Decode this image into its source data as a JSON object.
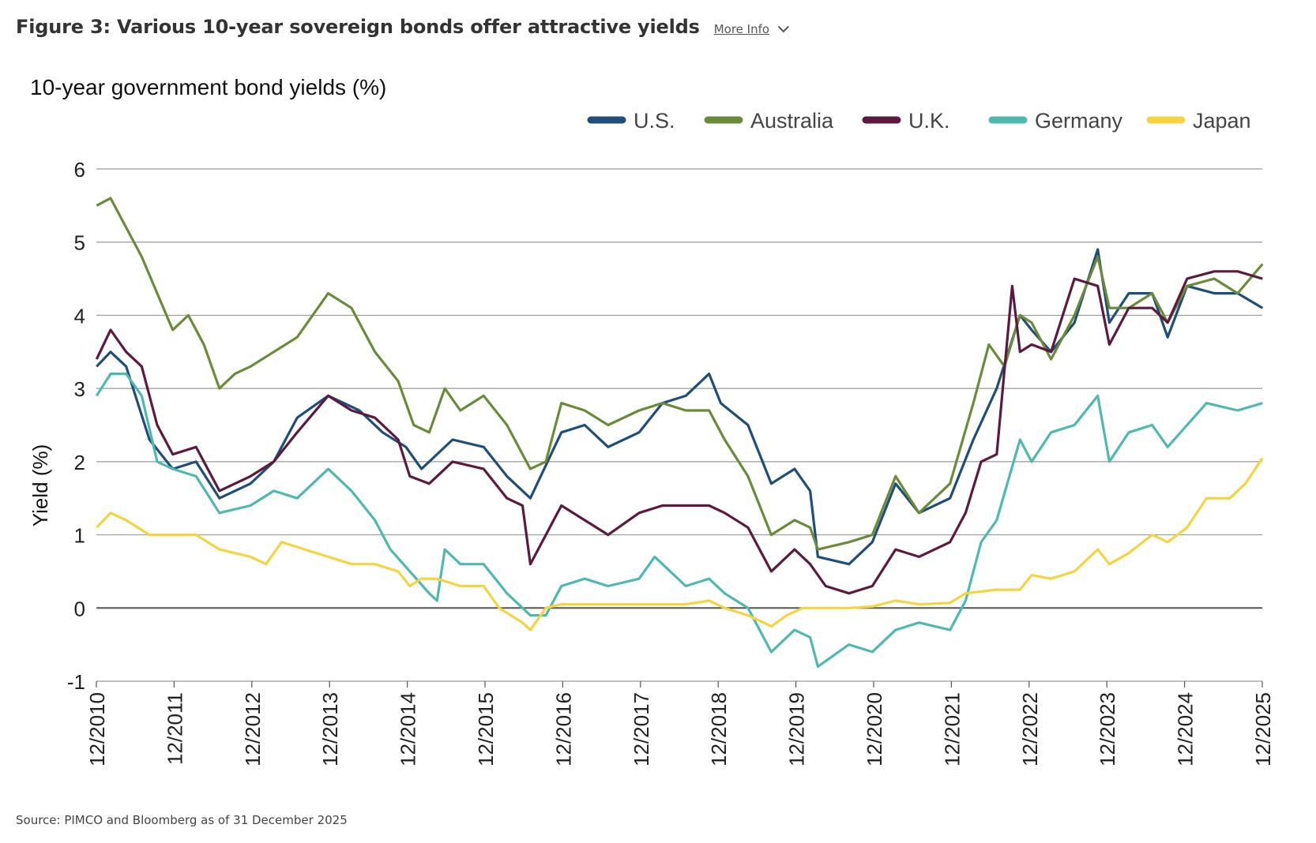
{
  "header": {
    "title": "Figure 3: Various 10-year sovereign bonds offer attractive yields",
    "more_info": "More Info"
  },
  "footer": {
    "source": "Source: PIMCO and Bloomberg as of 31 December 2025"
  },
  "chart_data": {
    "type": "line",
    "title": "10-year government bond yields (%)",
    "xlabel": "",
    "ylabel": "Yield (%)",
    "ylim": [
      -1,
      6
    ],
    "yticks": [
      -1,
      0,
      1,
      2,
      3,
      4,
      5,
      6
    ],
    "xlim": [
      2010.917,
      2025.917
    ],
    "xticks": [
      {
        "x": 2010.917,
        "label": "12/2010"
      },
      {
        "x": 2011.917,
        "label": "12/2011"
      },
      {
        "x": 2012.917,
        "label": "12/2012"
      },
      {
        "x": 2013.917,
        "label": "12/2013"
      },
      {
        "x": 2014.917,
        "label": "12/2014"
      },
      {
        "x": 2015.917,
        "label": "12/2015"
      },
      {
        "x": 2016.917,
        "label": "12/2016"
      },
      {
        "x": 2017.917,
        "label": "12/2017"
      },
      {
        "x": 2018.917,
        "label": "12/2018"
      },
      {
        "x": 2019.917,
        "label": "12/2019"
      },
      {
        "x": 2020.917,
        "label": "12/2020"
      },
      {
        "x": 2021.917,
        "label": "12/2021"
      },
      {
        "x": 2022.917,
        "label": "12/2022"
      },
      {
        "x": 2023.917,
        "label": "12/2023"
      },
      {
        "x": 2024.917,
        "label": "12/2024"
      },
      {
        "x": 2025.917,
        "label": "12/2025"
      }
    ],
    "grid": true,
    "legend_position": "top-right",
    "series": [
      {
        "name": "U.S.",
        "color": "#1f4e79",
        "points": [
          [
            2010.92,
            3.3
          ],
          [
            2011.1,
            3.5
          ],
          [
            2011.3,
            3.3
          ],
          [
            2011.6,
            2.3
          ],
          [
            2011.9,
            1.9
          ],
          [
            2012.2,
            2.0
          ],
          [
            2012.5,
            1.5
          ],
          [
            2012.9,
            1.7
          ],
          [
            2013.2,
            2.0
          ],
          [
            2013.5,
            2.6
          ],
          [
            2013.9,
            2.9
          ],
          [
            2014.3,
            2.7
          ],
          [
            2014.6,
            2.4
          ],
          [
            2014.9,
            2.2
          ],
          [
            2015.1,
            1.9
          ],
          [
            2015.5,
            2.3
          ],
          [
            2015.9,
            2.2
          ],
          [
            2016.2,
            1.8
          ],
          [
            2016.5,
            1.5
          ],
          [
            2016.9,
            2.4
          ],
          [
            2017.2,
            2.5
          ],
          [
            2017.5,
            2.2
          ],
          [
            2017.9,
            2.4
          ],
          [
            2018.2,
            2.8
          ],
          [
            2018.5,
            2.9
          ],
          [
            2018.8,
            3.2
          ],
          [
            2018.95,
            2.8
          ],
          [
            2019.3,
            2.5
          ],
          [
            2019.6,
            1.7
          ],
          [
            2019.9,
            1.9
          ],
          [
            2020.1,
            1.6
          ],
          [
            2020.2,
            0.7
          ],
          [
            2020.6,
            0.6
          ],
          [
            2020.9,
            0.9
          ],
          [
            2021.2,
            1.7
          ],
          [
            2021.5,
            1.3
          ],
          [
            2021.9,
            1.5
          ],
          [
            2022.2,
            2.3
          ],
          [
            2022.5,
            3.0
          ],
          [
            2022.8,
            4.0
          ],
          [
            2022.95,
            3.8
          ],
          [
            2023.2,
            3.5
          ],
          [
            2023.5,
            3.9
          ],
          [
            2023.8,
            4.9
          ],
          [
            2023.95,
            3.9
          ],
          [
            2024.2,
            4.3
          ],
          [
            2024.5,
            4.3
          ],
          [
            2024.7,
            3.7
          ],
          [
            2024.95,
            4.4
          ],
          [
            2025.3,
            4.3
          ],
          [
            2025.6,
            4.3
          ],
          [
            2025.92,
            4.1
          ]
        ]
      },
      {
        "name": "Australia",
        "color": "#6a8c3a",
        "points": [
          [
            2010.92,
            5.5
          ],
          [
            2011.1,
            5.6
          ],
          [
            2011.3,
            5.2
          ],
          [
            2011.5,
            4.8
          ],
          [
            2011.7,
            4.3
          ],
          [
            2011.9,
            3.8
          ],
          [
            2012.1,
            4.0
          ],
          [
            2012.3,
            3.6
          ],
          [
            2012.5,
            3.0
          ],
          [
            2012.7,
            3.2
          ],
          [
            2012.9,
            3.3
          ],
          [
            2013.2,
            3.5
          ],
          [
            2013.5,
            3.7
          ],
          [
            2013.7,
            4.0
          ],
          [
            2013.9,
            4.3
          ],
          [
            2014.2,
            4.1
          ],
          [
            2014.5,
            3.5
          ],
          [
            2014.8,
            3.1
          ],
          [
            2015.0,
            2.5
          ],
          [
            2015.2,
            2.4
          ],
          [
            2015.4,
            3.0
          ],
          [
            2015.6,
            2.7
          ],
          [
            2015.9,
            2.9
          ],
          [
            2016.2,
            2.5
          ],
          [
            2016.5,
            1.9
          ],
          [
            2016.7,
            2.0
          ],
          [
            2016.9,
            2.8
          ],
          [
            2017.2,
            2.7
          ],
          [
            2017.5,
            2.5
          ],
          [
            2017.9,
            2.7
          ],
          [
            2018.2,
            2.8
          ],
          [
            2018.5,
            2.7
          ],
          [
            2018.8,
            2.7
          ],
          [
            2019.0,
            2.3
          ],
          [
            2019.3,
            1.8
          ],
          [
            2019.6,
            1.0
          ],
          [
            2019.9,
            1.2
          ],
          [
            2020.1,
            1.1
          ],
          [
            2020.2,
            0.8
          ],
          [
            2020.6,
            0.9
          ],
          [
            2020.9,
            1.0
          ],
          [
            2021.2,
            1.8
          ],
          [
            2021.5,
            1.3
          ],
          [
            2021.9,
            1.7
          ],
          [
            2022.2,
            2.8
          ],
          [
            2022.4,
            3.6
          ],
          [
            2022.6,
            3.3
          ],
          [
            2022.8,
            4.0
          ],
          [
            2022.95,
            3.9
          ],
          [
            2023.2,
            3.4
          ],
          [
            2023.5,
            4.0
          ],
          [
            2023.8,
            4.8
          ],
          [
            2023.95,
            4.1
          ],
          [
            2024.2,
            4.1
          ],
          [
            2024.5,
            4.3
          ],
          [
            2024.7,
            3.9
          ],
          [
            2024.95,
            4.4
          ],
          [
            2025.3,
            4.5
          ],
          [
            2025.6,
            4.3
          ],
          [
            2025.92,
            4.7
          ]
        ]
      },
      {
        "name": "U.K.",
        "color": "#5c1a3f",
        "points": [
          [
            2010.92,
            3.4
          ],
          [
            2011.1,
            3.8
          ],
          [
            2011.3,
            3.5
          ],
          [
            2011.5,
            3.3
          ],
          [
            2011.7,
            2.5
          ],
          [
            2011.9,
            2.1
          ],
          [
            2012.2,
            2.2
          ],
          [
            2012.5,
            1.6
          ],
          [
            2012.9,
            1.8
          ],
          [
            2013.2,
            2.0
          ],
          [
            2013.5,
            2.4
          ],
          [
            2013.9,
            2.9
          ],
          [
            2014.2,
            2.7
          ],
          [
            2014.5,
            2.6
          ],
          [
            2014.8,
            2.3
          ],
          [
            2014.95,
            1.8
          ],
          [
            2015.2,
            1.7
          ],
          [
            2015.5,
            2.0
          ],
          [
            2015.9,
            1.9
          ],
          [
            2016.2,
            1.5
          ],
          [
            2016.4,
            1.4
          ],
          [
            2016.5,
            0.6
          ],
          [
            2016.9,
            1.4
          ],
          [
            2017.2,
            1.2
          ],
          [
            2017.5,
            1.0
          ],
          [
            2017.9,
            1.3
          ],
          [
            2018.2,
            1.4
          ],
          [
            2018.5,
            1.4
          ],
          [
            2018.8,
            1.4
          ],
          [
            2019.0,
            1.3
          ],
          [
            2019.3,
            1.1
          ],
          [
            2019.6,
            0.5
          ],
          [
            2019.9,
            0.8
          ],
          [
            2020.1,
            0.6
          ],
          [
            2020.3,
            0.3
          ],
          [
            2020.6,
            0.2
          ],
          [
            2020.9,
            0.3
          ],
          [
            2021.2,
            0.8
          ],
          [
            2021.5,
            0.7
          ],
          [
            2021.9,
            0.9
          ],
          [
            2022.1,
            1.3
          ],
          [
            2022.3,
            2.0
          ],
          [
            2022.5,
            2.1
          ],
          [
            2022.7,
            4.4
          ],
          [
            2022.8,
            3.5
          ],
          [
            2022.95,
            3.6
          ],
          [
            2023.2,
            3.5
          ],
          [
            2023.5,
            4.5
          ],
          [
            2023.8,
            4.4
          ],
          [
            2023.95,
            3.6
          ],
          [
            2024.2,
            4.1
          ],
          [
            2024.5,
            4.1
          ],
          [
            2024.7,
            3.9
          ],
          [
            2024.95,
            4.5
          ],
          [
            2025.3,
            4.6
          ],
          [
            2025.6,
            4.6
          ],
          [
            2025.92,
            4.5
          ]
        ]
      },
      {
        "name": "Germany",
        "color": "#4fb9b0",
        "points": [
          [
            2010.92,
            2.9
          ],
          [
            2011.1,
            3.2
          ],
          [
            2011.3,
            3.2
          ],
          [
            2011.5,
            2.9
          ],
          [
            2011.7,
            2.0
          ],
          [
            2011.9,
            1.9
          ],
          [
            2012.2,
            1.8
          ],
          [
            2012.5,
            1.3
          ],
          [
            2012.9,
            1.4
          ],
          [
            2013.2,
            1.6
          ],
          [
            2013.5,
            1.5
          ],
          [
            2013.9,
            1.9
          ],
          [
            2014.2,
            1.6
          ],
          [
            2014.5,
            1.2
          ],
          [
            2014.7,
            0.8
          ],
          [
            2014.95,
            0.5
          ],
          [
            2015.2,
            0.2
          ],
          [
            2015.3,
            0.1
          ],
          [
            2015.4,
            0.8
          ],
          [
            2015.6,
            0.6
          ],
          [
            2015.9,
            0.6
          ],
          [
            2016.2,
            0.2
          ],
          [
            2016.5,
            -0.1
          ],
          [
            2016.7,
            -0.1
          ],
          [
            2016.9,
            0.3
          ],
          [
            2017.2,
            0.4
          ],
          [
            2017.5,
            0.3
          ],
          [
            2017.9,
            0.4
          ],
          [
            2018.1,
            0.7
          ],
          [
            2018.3,
            0.5
          ],
          [
            2018.5,
            0.3
          ],
          [
            2018.8,
            0.4
          ],
          [
            2019.0,
            0.2
          ],
          [
            2019.3,
            0.0
          ],
          [
            2019.6,
            -0.6
          ],
          [
            2019.9,
            -0.3
          ],
          [
            2020.1,
            -0.4
          ],
          [
            2020.2,
            -0.8
          ],
          [
            2020.6,
            -0.5
          ],
          [
            2020.9,
            -0.6
          ],
          [
            2021.2,
            -0.3
          ],
          [
            2021.5,
            -0.2
          ],
          [
            2021.9,
            -0.3
          ],
          [
            2022.1,
            0.1
          ],
          [
            2022.3,
            0.9
          ],
          [
            2022.5,
            1.2
          ],
          [
            2022.8,
            2.3
          ],
          [
            2022.95,
            2.0
          ],
          [
            2023.2,
            2.4
          ],
          [
            2023.5,
            2.5
          ],
          [
            2023.8,
            2.9
          ],
          [
            2023.95,
            2.0
          ],
          [
            2024.2,
            2.4
          ],
          [
            2024.5,
            2.5
          ],
          [
            2024.7,
            2.2
          ],
          [
            2024.95,
            2.5
          ],
          [
            2025.2,
            2.8
          ],
          [
            2025.6,
            2.7
          ],
          [
            2025.92,
            2.8
          ]
        ]
      },
      {
        "name": "Japan",
        "color": "#f5d442",
        "points": [
          [
            2010.92,
            1.1
          ],
          [
            2011.1,
            1.3
          ],
          [
            2011.3,
            1.2
          ],
          [
            2011.6,
            1.0
          ],
          [
            2011.9,
            1.0
          ],
          [
            2012.2,
            1.0
          ],
          [
            2012.5,
            0.8
          ],
          [
            2012.9,
            0.7
          ],
          [
            2013.1,
            0.6
          ],
          [
            2013.3,
            0.9
          ],
          [
            2013.6,
            0.8
          ],
          [
            2013.9,
            0.7
          ],
          [
            2014.2,
            0.6
          ],
          [
            2014.5,
            0.6
          ],
          [
            2014.8,
            0.5
          ],
          [
            2014.95,
            0.3
          ],
          [
            2015.1,
            0.4
          ],
          [
            2015.3,
            0.4
          ],
          [
            2015.6,
            0.3
          ],
          [
            2015.9,
            0.3
          ],
          [
            2016.1,
            0.0
          ],
          [
            2016.4,
            -0.2
          ],
          [
            2016.5,
            -0.3
          ],
          [
            2016.7,
            0.0
          ],
          [
            2016.9,
            0.05
          ],
          [
            2017.2,
            0.05
          ],
          [
            2017.5,
            0.05
          ],
          [
            2017.9,
            0.05
          ],
          [
            2018.2,
            0.05
          ],
          [
            2018.5,
            0.05
          ],
          [
            2018.8,
            0.1
          ],
          [
            2019.0,
            0.0
          ],
          [
            2019.3,
            -0.1
          ],
          [
            2019.6,
            -0.25
          ],
          [
            2019.8,
            -0.1
          ],
          [
            2020.0,
            0.0
          ],
          [
            2020.3,
            0.0
          ],
          [
            2020.6,
            0.0
          ],
          [
            2020.9,
            0.02
          ],
          [
            2021.2,
            0.1
          ],
          [
            2021.5,
            0.05
          ],
          [
            2021.9,
            0.07
          ],
          [
            2022.1,
            0.2
          ],
          [
            2022.5,
            0.25
          ],
          [
            2022.8,
            0.25
          ],
          [
            2022.95,
            0.45
          ],
          [
            2023.2,
            0.4
          ],
          [
            2023.5,
            0.5
          ],
          [
            2023.8,
            0.8
          ],
          [
            2023.95,
            0.6
          ],
          [
            2024.2,
            0.75
          ],
          [
            2024.5,
            1.0
          ],
          [
            2024.7,
            0.9
          ],
          [
            2024.95,
            1.1
          ],
          [
            2025.2,
            1.5
          ],
          [
            2025.5,
            1.5
          ],
          [
            2025.7,
            1.7
          ],
          [
            2025.92,
            2.05
          ]
        ]
      }
    ]
  }
}
